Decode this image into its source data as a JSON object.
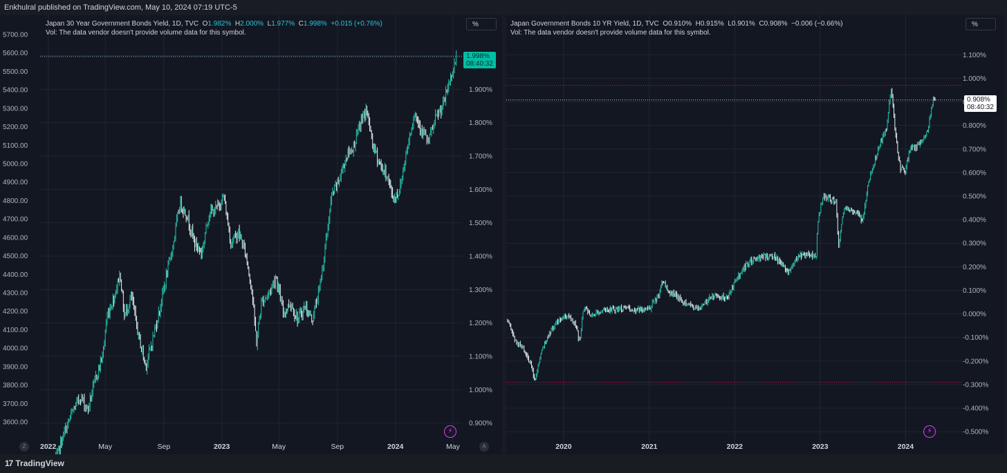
{
  "publish_line": "Enkhulral published on TradingView.com, May 10, 2024 07:19 UTC-5",
  "brand": "TradingView",
  "left_panel": {
    "legend_title": "Japan 30 Year Government Bonds Yield, 1D, TVC",
    "o_label": "O",
    "o_value": "1.982%",
    "h_label": "H",
    "h_value": "2.000%",
    "l_label": "L",
    "l_value": "1.977%",
    "c_label": "C",
    "c_value": "1.998%",
    "change": "+0.015 (+0.76%)",
    "vol_note": "Vol: The data vendor doesn't provide volume data for this symbol.",
    "scale_button": "%",
    "price_tag_value": "1.998%",
    "price_tag_time": "08:40:32",
    "left_btn": "Z",
    "right_btn": "A"
  },
  "right_panel": {
    "legend_title": "Japan Government Bonds 10 YR Yield, 1D, TVC",
    "o_label": "O",
    "o_value": "0.910%",
    "h_label": "H",
    "h_value": "0.915%",
    "l_label": "L",
    "l_value": "0.901%",
    "c_label": "C",
    "c_value": "0.908%",
    "change": "−0.006 (−0.66%)",
    "vol_note": "Vol: The data vendor doesn't provide volume data for this symbol.",
    "scale_button": "%",
    "price_tag_value": "0.908%",
    "price_tag_time": "08:40:32"
  },
  "colors": {
    "background": "#131722",
    "candle": "#26c6b0",
    "candle_light": "#e6f7f4",
    "grid": "#222631",
    "hline": "#c2185b",
    "price_tag_left": "#00bfa5"
  },
  "chart_data": [
    {
      "type": "candlestick",
      "title": "Japan 30 Year Government Bonds Yield, 1D, TVC",
      "left_axis_ticks": [
        "3600.00",
        "3700.00",
        "3800.00",
        "3900.00",
        "4000.00",
        "4100.00",
        "4200.00",
        "4300.00",
        "4400.00",
        "4500.00",
        "4600.00",
        "4700.00",
        "4800.00",
        "4900.00",
        "5000.00",
        "5100.00",
        "5200.00",
        "5300.00",
        "5400.00",
        "5500.00",
        "5600.00",
        "5700.00"
      ],
      "right_axis_ticks": [
        "0.900%",
        "1.000%",
        "1.100%",
        "1.200%",
        "1.300%",
        "1.400%",
        "1.500%",
        "1.600%",
        "1.700%",
        "1.800%",
        "1.900%",
        "2.000%"
      ],
      "x_ticks": [
        {
          "label": "2022",
          "bold": true,
          "date": "2022-01-01"
        },
        {
          "label": "May",
          "bold": false,
          "date": "2022-05-01"
        },
        {
          "label": "Sep",
          "bold": false,
          "date": "2022-09-01"
        },
        {
          "label": "2023",
          "bold": true,
          "date": "2023-01-01"
        },
        {
          "label": "May",
          "bold": false,
          "date": "2023-05-01"
        },
        {
          "label": "Sep",
          "bold": false,
          "date": "2023-09-01"
        },
        {
          "label": "2024",
          "bold": true,
          "date": "2024-01-01"
        },
        {
          "label": "May",
          "bold": false,
          "date": "2024-05-01"
        }
      ],
      "x_range": [
        "2021-12-15",
        "2024-05-20"
      ],
      "y_range": [
        0.86,
        2.06
      ],
      "series": [
        {
          "unit": "%",
          "points": [
            [
              "2022-01-15",
              0.78
            ],
            [
              "2022-02-01",
              0.86
            ],
            [
              "2022-02-20",
              0.93
            ],
            [
              "2022-03-10",
              0.98
            ],
            [
              "2022-03-25",
              0.94
            ],
            [
              "2022-04-10",
              1.03
            ],
            [
              "2022-04-25",
              1.1
            ],
            [
              "2022-05-05",
              1.22
            ],
            [
              "2022-05-20",
              1.28
            ],
            [
              "2022-06-01",
              1.35
            ],
            [
              "2022-06-10",
              1.22
            ],
            [
              "2022-06-25",
              1.28
            ],
            [
              "2022-07-10",
              1.16
            ],
            [
              "2022-07-25",
              1.07
            ],
            [
              "2022-08-05",
              1.13
            ],
            [
              "2022-08-20",
              1.22
            ],
            [
              "2022-09-05",
              1.33
            ],
            [
              "2022-09-20",
              1.43
            ],
            [
              "2022-10-05",
              1.56
            ],
            [
              "2022-10-20",
              1.52
            ],
            [
              "2022-11-05",
              1.44
            ],
            [
              "2022-11-20",
              1.41
            ],
            [
              "2022-12-05",
              1.53
            ],
            [
              "2022-12-20",
              1.54
            ],
            [
              "2023-01-05",
              1.58
            ],
            [
              "2023-01-20",
              1.44
            ],
            [
              "2023-02-05",
              1.47
            ],
            [
              "2023-02-20",
              1.41
            ],
            [
              "2023-03-05",
              1.3
            ],
            [
              "2023-03-15",
              1.14
            ],
            [
              "2023-03-25",
              1.26
            ],
            [
              "2023-04-10",
              1.29
            ],
            [
              "2023-04-25",
              1.34
            ],
            [
              "2023-05-10",
              1.23
            ],
            [
              "2023-05-25",
              1.26
            ],
            [
              "2023-06-10",
              1.21
            ],
            [
              "2023-06-25",
              1.25
            ],
            [
              "2023-07-10",
              1.21
            ],
            [
              "2023-07-25",
              1.3
            ],
            [
              "2023-08-05",
              1.41
            ],
            [
              "2023-08-20",
              1.58
            ],
            [
              "2023-09-05",
              1.63
            ],
            [
              "2023-09-20",
              1.7
            ],
            [
              "2023-10-05",
              1.73
            ],
            [
              "2023-10-20",
              1.8
            ],
            [
              "2023-11-01",
              1.84
            ],
            [
              "2023-11-15",
              1.73
            ],
            [
              "2023-12-01",
              1.67
            ],
            [
              "2023-12-15",
              1.64
            ],
            [
              "2023-12-28",
              1.57
            ],
            [
              "2024-01-10",
              1.6
            ],
            [
              "2024-01-25",
              1.72
            ],
            [
              "2024-02-10",
              1.83
            ],
            [
              "2024-02-25",
              1.78
            ],
            [
              "2024-03-10",
              1.74
            ],
            [
              "2024-03-25",
              1.81
            ],
            [
              "2024-04-10",
              1.85
            ],
            [
              "2024-04-25",
              1.93
            ],
            [
              "2024-05-09",
              1.998
            ]
          ]
        }
      ],
      "hlines": [
        2.0
      ],
      "current_value": 1.998
    },
    {
      "type": "candlestick",
      "title": "Japan Government Bonds 10 YR Yield, 1D, TVC",
      "right_axis_ticks": [
        "-0.500%",
        "-0.400%",
        "-0.300%",
        "-0.200%",
        "-0.100%",
        "0.000%",
        "0.100%",
        "0.200%",
        "0.300%",
        "0.400%",
        "0.500%",
        "0.600%",
        "0.700%",
        "0.800%",
        "0.900%",
        "1.000%",
        "1.100%"
      ],
      "x_ticks": [
        {
          "label": "2020",
          "bold": true,
          "date": "2020-01-01"
        },
        {
          "label": "2021",
          "bold": true,
          "date": "2021-01-01"
        },
        {
          "label": "2022",
          "bold": true,
          "date": "2022-01-01"
        },
        {
          "label": "2023",
          "bold": true,
          "date": "2023-01-01"
        },
        {
          "label": "2024",
          "bold": true,
          "date": "2024-01-01"
        }
      ],
      "x_range": [
        "2019-05-01",
        "2024-09-01"
      ],
      "y_range": [
        -0.52,
        1.18
      ],
      "series": [
        {
          "unit": "%",
          "points": [
            [
              "2019-05-05",
              -0.03
            ],
            [
              "2019-06-10",
              -0.12
            ],
            [
              "2019-07-15",
              -0.15
            ],
            [
              "2019-08-15",
              -0.22
            ],
            [
              "2019-09-01",
              -0.28
            ],
            [
              "2019-10-01",
              -0.15
            ],
            [
              "2019-11-01",
              -0.08
            ],
            [
              "2019-12-15",
              -0.02
            ],
            [
              "2020-01-20",
              -0.01
            ],
            [
              "2020-02-20",
              -0.05
            ],
            [
              "2020-03-10",
              -0.12
            ],
            [
              "2020-03-25",
              0.02
            ],
            [
              "2020-05-01",
              0.0
            ],
            [
              "2020-07-01",
              0.02
            ],
            [
              "2020-09-01",
              0.02
            ],
            [
              "2020-11-01",
              0.02
            ],
            [
              "2020-12-31",
              0.02
            ],
            [
              "2021-02-10",
              0.08
            ],
            [
              "2021-02-25",
              0.14
            ],
            [
              "2021-04-01",
              0.09
            ],
            [
              "2021-06-01",
              0.05
            ],
            [
              "2021-08-01",
              0.02
            ],
            [
              "2021-10-01",
              0.08
            ],
            [
              "2021-12-01",
              0.07
            ],
            [
              "2022-01-10",
              0.15
            ],
            [
              "2022-02-15",
              0.2
            ],
            [
              "2022-03-20",
              0.23
            ],
            [
              "2022-05-01",
              0.24
            ],
            [
              "2022-06-15",
              0.25
            ],
            [
              "2022-08-15",
              0.18
            ],
            [
              "2022-10-01",
              0.25
            ],
            [
              "2022-12-15",
              0.25
            ],
            [
              "2022-12-22",
              0.4
            ],
            [
              "2023-01-15",
              0.5
            ],
            [
              "2023-03-10",
              0.48
            ],
            [
              "2023-03-20",
              0.28
            ],
            [
              "2023-04-15",
              0.46
            ],
            [
              "2023-06-01",
              0.43
            ],
            [
              "2023-07-01",
              0.4
            ],
            [
              "2023-07-28",
              0.57
            ],
            [
              "2023-08-20",
              0.64
            ],
            [
              "2023-09-15",
              0.73
            ],
            [
              "2023-10-10",
              0.78
            ],
            [
              "2023-10-31",
              0.96
            ],
            [
              "2023-11-20",
              0.75
            ],
            [
              "2023-12-10",
              0.62
            ],
            [
              "2023-12-28",
              0.6
            ],
            [
              "2024-01-20",
              0.7
            ],
            [
              "2024-02-20",
              0.71
            ],
            [
              "2024-03-15",
              0.75
            ],
            [
              "2024-04-05",
              0.78
            ],
            [
              "2024-04-25",
              0.9
            ],
            [
              "2024-05-09",
              0.908
            ]
          ]
        }
      ],
      "hlines": [
        0.97,
        -0.29
      ],
      "current_value": 0.908
    }
  ]
}
